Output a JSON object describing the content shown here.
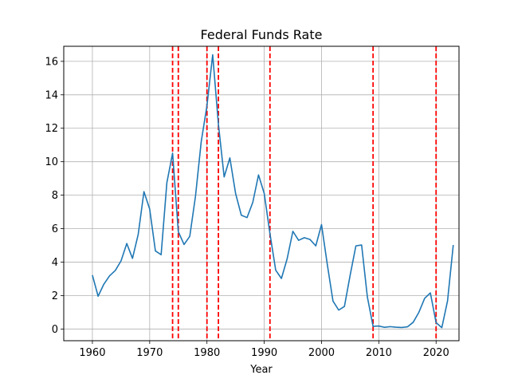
{
  "chart_data": {
    "type": "line",
    "title": "Federal Funds Rate",
    "xlabel": "Year",
    "ylabel": "",
    "xlim": [
      1955,
      2024
    ],
    "ylim": [
      -0.7,
      16.9
    ],
    "xticks": [
      1960,
      1970,
      1980,
      1990,
      2000,
      2010,
      2020
    ],
    "yticks": [
      0,
      2,
      4,
      6,
      8,
      10,
      12,
      14,
      16
    ],
    "grid": true,
    "x": [
      1960,
      1961,
      1962,
      1963,
      1964,
      1965,
      1966,
      1967,
      1968,
      1969,
      1970,
      1971,
      1972,
      1973,
      1974,
      1975,
      1976,
      1977,
      1978,
      1979,
      1980,
      1981,
      1982,
      1983,
      1984,
      1985,
      1986,
      1987,
      1988,
      1989,
      1990,
      1991,
      1992,
      1993,
      1994,
      1995,
      1996,
      1997,
      1998,
      1999,
      2000,
      2001,
      2002,
      2003,
      2004,
      2005,
      2006,
      2007,
      2008,
      2009,
      2010,
      2011,
      2012,
      2013,
      2014,
      2015,
      2016,
      2017,
      2018,
      2019,
      2020,
      2021,
      2022,
      2023
    ],
    "series": [
      {
        "color": "#1f77b4",
        "values": [
          3.22,
          1.96,
          2.68,
          3.18,
          3.5,
          4.07,
          5.11,
          4.22,
          5.66,
          8.21,
          7.17,
          4.67,
          4.44,
          8.74,
          10.51,
          5.82,
          5.05,
          5.54,
          7.94,
          11.2,
          13.35,
          16.39,
          12.24,
          9.09,
          10.23,
          8.1,
          6.8,
          6.66,
          7.57,
          9.21,
          8.1,
          5.69,
          3.52,
          3.02,
          4.2,
          5.84,
          5.3,
          5.46,
          5.35,
          4.97,
          6.24,
          3.88,
          1.67,
          1.13,
          1.35,
          3.22,
          4.97,
          5.02,
          1.92,
          0.16,
          0.18,
          0.1,
          0.14,
          0.11,
          0.09,
          0.13,
          0.4,
          1.0,
          1.83,
          2.16,
          0.38,
          0.08,
          1.68,
          5.02
        ]
      }
    ],
    "vlines": {
      "color": "#ff0000",
      "style": "dashed",
      "x": [
        1974,
        1975,
        1980,
        1982,
        1991,
        2009,
        2020
      ]
    }
  }
}
